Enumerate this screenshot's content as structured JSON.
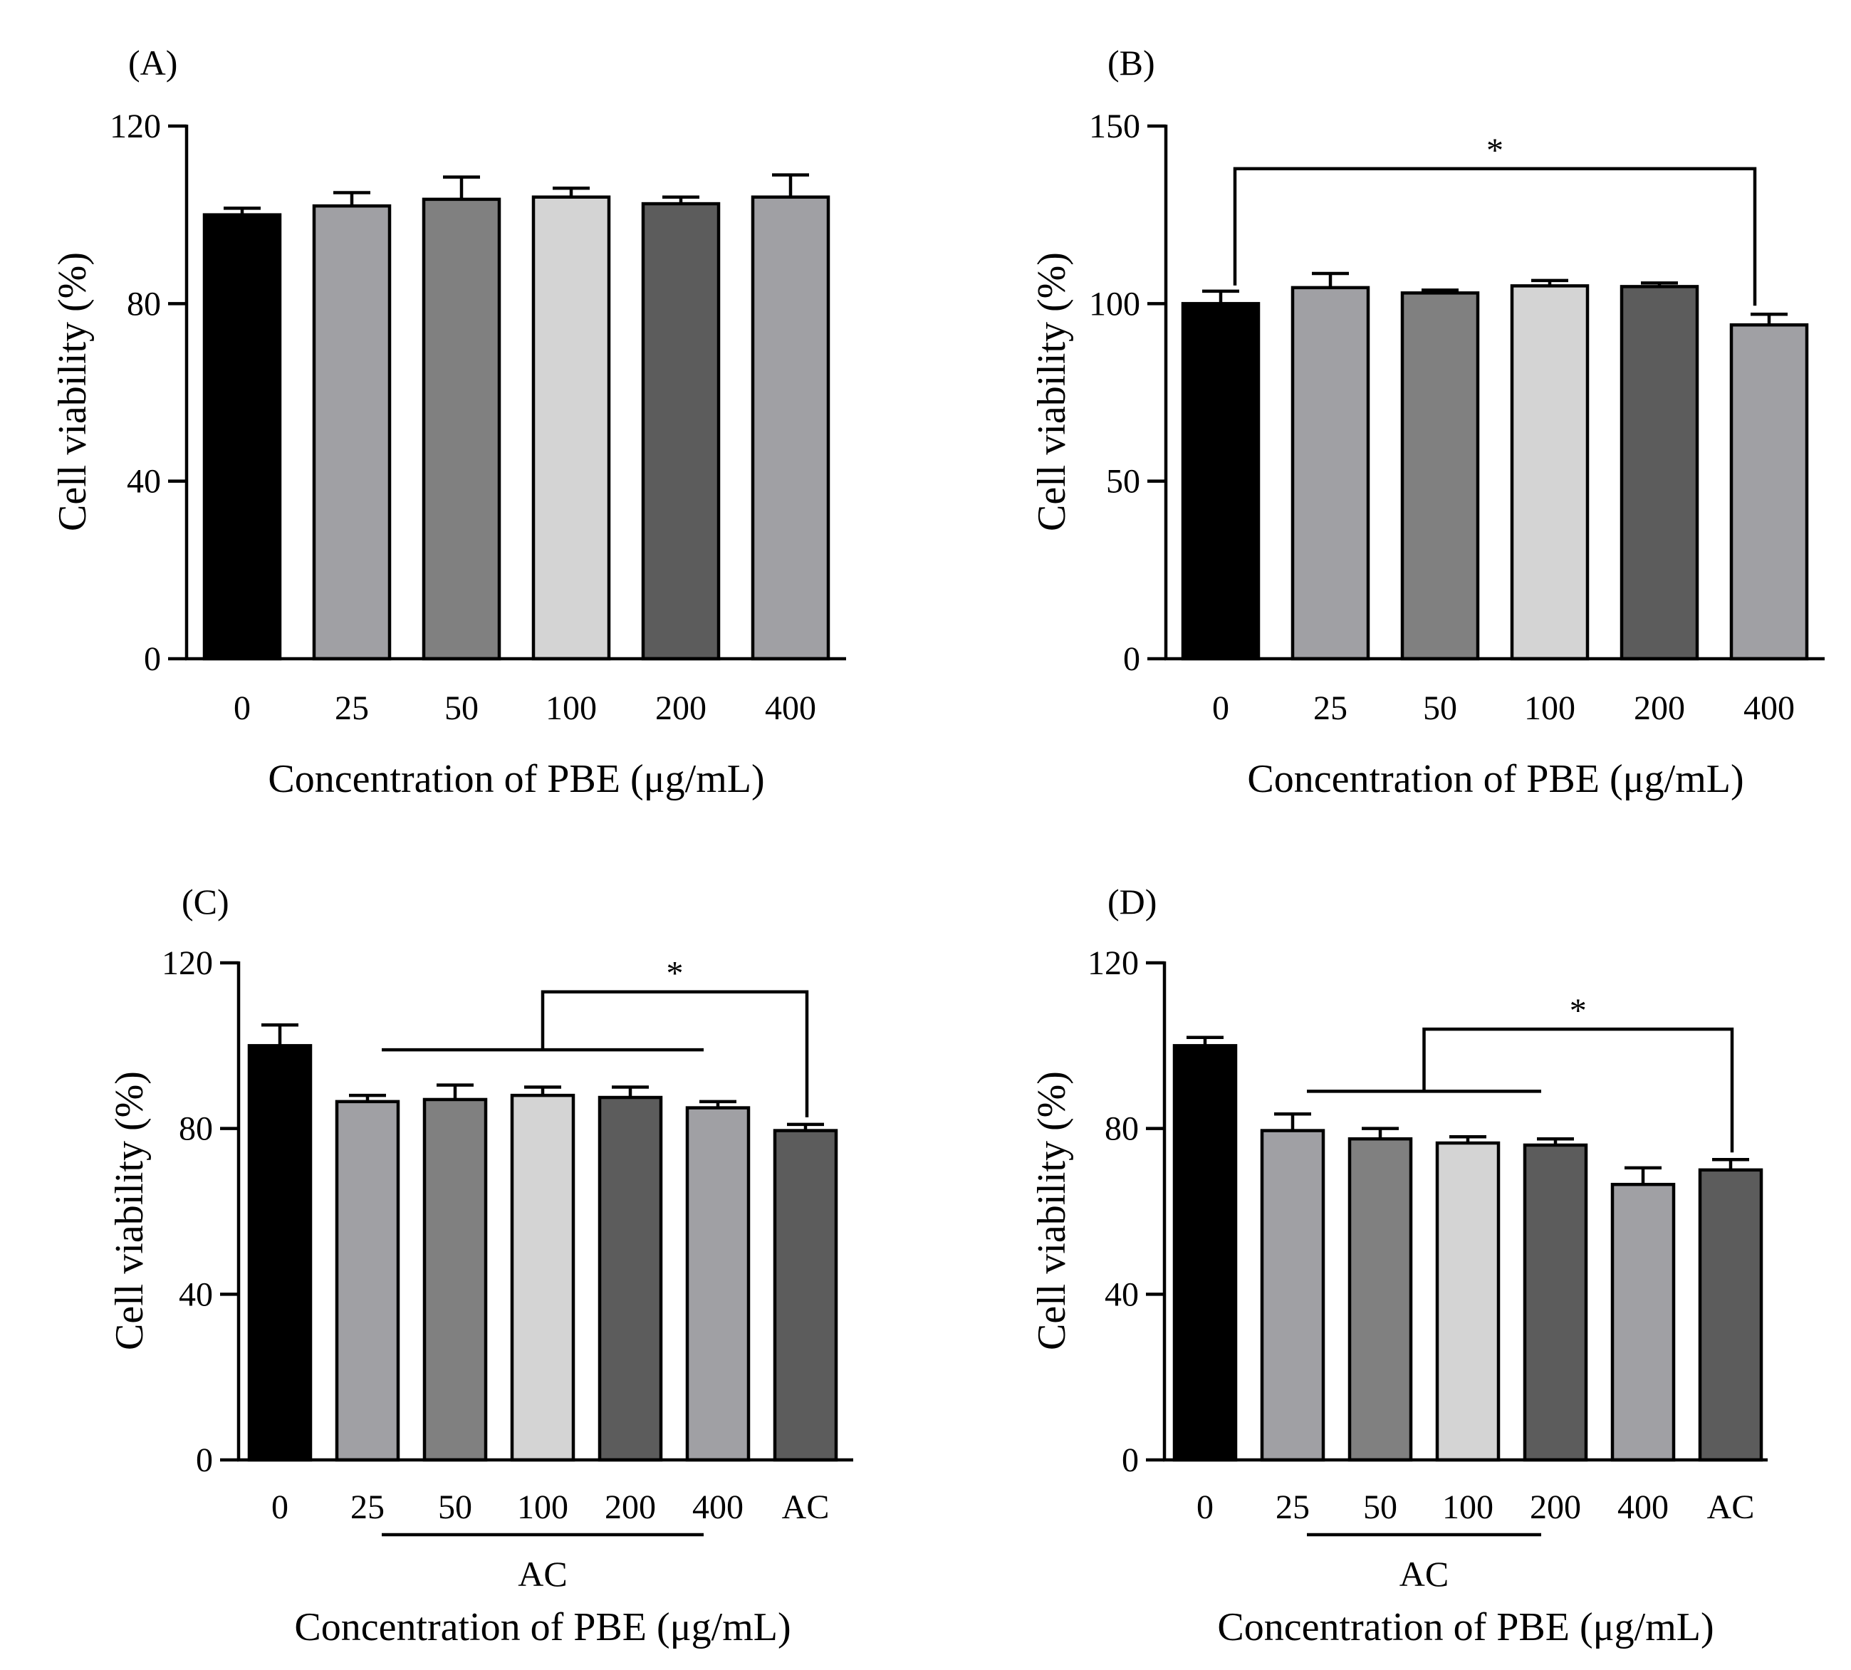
{
  "chart_data": [
    {
      "panel": "(A)",
      "type": "bar",
      "categories": [
        "0",
        "25",
        "50",
        "100",
        "200",
        "400"
      ],
      "values": [
        100,
        102,
        103.5,
        104,
        102.5,
        104
      ],
      "errors": [
        1.5,
        3,
        5,
        2,
        1.5,
        5
      ],
      "colors": [
        "#000000",
        "#a0a0a4",
        "#808080",
        "#d4d4d4",
        "#5c5c5c",
        "#a0a0a4"
      ],
      "ylabel": "Cell viability (%)",
      "xlabel": "Concentration of PBE (μg/mL)",
      "ylim": [
        0,
        120
      ],
      "yticks": [
        "0",
        "40",
        "80",
        "120"
      ],
      "significance": []
    },
    {
      "panel": "(B)",
      "type": "bar",
      "categories": [
        "0",
        "25",
        "50",
        "100",
        "200",
        "400"
      ],
      "values": [
        100,
        104.5,
        103,
        105,
        104.8,
        94
      ],
      "errors": [
        3.5,
        4,
        0.8,
        1.5,
        1,
        3
      ],
      "colors": [
        "#000000",
        "#a0a0a4",
        "#808080",
        "#d4d4d4",
        "#5c5c5c",
        "#a0a0a4"
      ],
      "ylabel": "Cell viability (%)",
      "xlabel": "Concentration of PBE (μg/mL)",
      "ylim": [
        0,
        150
      ],
      "yticks": [
        "0",
        "50",
        "100",
        "150"
      ],
      "significance": [
        {
          "kind": "pair",
          "from": 0,
          "to": 5,
          "level": 138,
          "label": "*"
        }
      ]
    },
    {
      "panel": "(C)",
      "type": "bar",
      "categories": [
        "0",
        "25",
        "50",
        "100",
        "200",
        "400",
        "AC"
      ],
      "values": [
        100,
        86.5,
        87,
        88,
        87.5,
        85,
        79.5
      ],
      "errors": [
        5,
        1.5,
        3.5,
        2,
        2.5,
        1.5,
        1.5
      ],
      "colors": [
        "#000000",
        "#a0a0a4",
        "#808080",
        "#d4d4d4",
        "#5c5c5c",
        "#a0a0a4",
        "#5c5c5c"
      ],
      "ylabel": "Cell viability (%)",
      "xlabel": "Concentration of PBE (μg/mL)",
      "ylim": [
        0,
        120
      ],
      "yticks": [
        "0",
        "40",
        "80",
        "120"
      ],
      "group_label": "AC",
      "group_span": [
        1,
        5
      ],
      "significance": [
        {
          "kind": "group",
          "from": 1,
          "to": 5,
          "target": 6,
          "level": 113,
          "line": 99,
          "label": "*"
        }
      ]
    },
    {
      "panel": "(D)",
      "type": "bar",
      "categories": [
        "0",
        "25",
        "50",
        "100",
        "200",
        "400",
        "AC"
      ],
      "values": [
        100,
        79.5,
        77.5,
        76.5,
        76,
        66.5,
        70
      ],
      "errors": [
        2,
        4,
        2.5,
        1.5,
        1.5,
        4,
        2.5
      ],
      "colors": [
        "#000000",
        "#a0a0a4",
        "#808080",
        "#d4d4d4",
        "#5c5c5c",
        "#a0a0a4",
        "#5c5c5c"
      ],
      "ylabel": "Cell viability (%)",
      "xlabel": "Concentration of PBE (μg/mL)",
      "ylim": [
        0,
        120
      ],
      "yticks": [
        "0",
        "40",
        "80",
        "120"
      ],
      "group_label": "AC",
      "group_span": [
        1,
        4
      ],
      "significance": [
        {
          "kind": "group",
          "from": 1,
          "to": 4,
          "target": 6,
          "level": 104,
          "line": 89,
          "label": "*"
        }
      ]
    }
  ]
}
